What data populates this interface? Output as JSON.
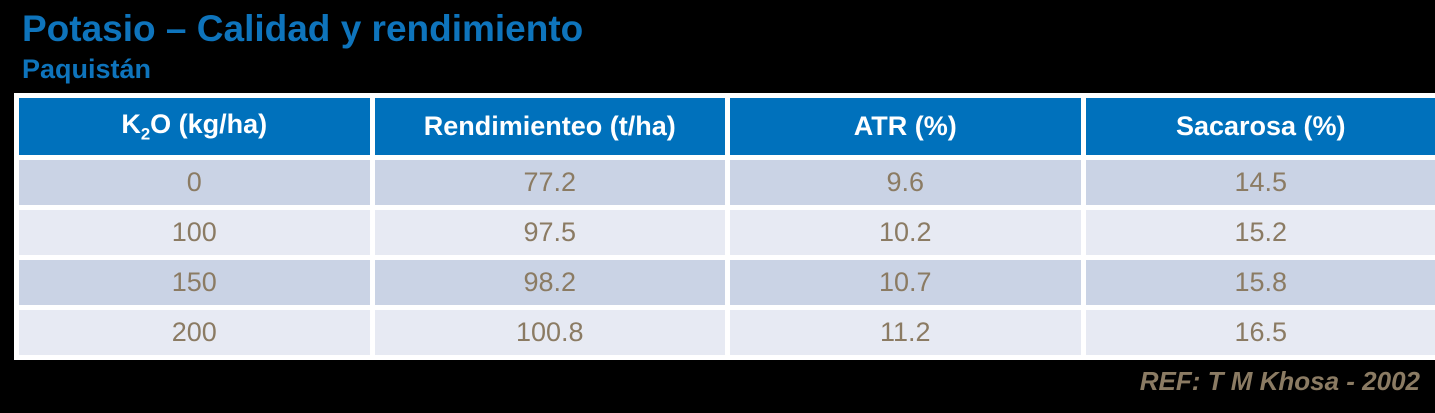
{
  "page": {
    "background": "#000000"
  },
  "header": {
    "title": "Potasio – Calidad y rendimiento",
    "subtitle": "Paquistán"
  },
  "colors": {
    "title_blue": "#0E74BC",
    "table_header_bg": "#0071BC",
    "table_header_text": "#FFFFFF",
    "row_dark_bg": "#CAD3E5",
    "row_light_bg": "#E7EAF3",
    "cell_text": "#8B7B63",
    "table_gap": "#FFFFFF"
  },
  "chart_data": {
    "type": "table",
    "title": "Potasio – Calidad y rendimiento",
    "subtitle": "Paquistán",
    "columns": [
      {
        "parts": [
          {
            "t": "K"
          },
          {
            "t": "2",
            "sub": true
          },
          {
            "t": "O (kg/ha)"
          }
        ]
      },
      {
        "parts": [
          {
            "t": "Rendimienteo (t/ha)"
          }
        ]
      },
      {
        "parts": [
          {
            "t": "ATR (%)"
          }
        ]
      },
      {
        "parts": [
          {
            "t": "Sacarosa (%)"
          }
        ]
      }
    ],
    "rows": [
      [
        0,
        77.2,
        9.6,
        14.5
      ],
      [
        100,
        97.5,
        10.2,
        15.2
      ],
      [
        150,
        98.2,
        10.7,
        15.8
      ],
      [
        200,
        100.8,
        11.2,
        16.5
      ]
    ],
    "reference": "REF: T M Khosa - 2002"
  }
}
